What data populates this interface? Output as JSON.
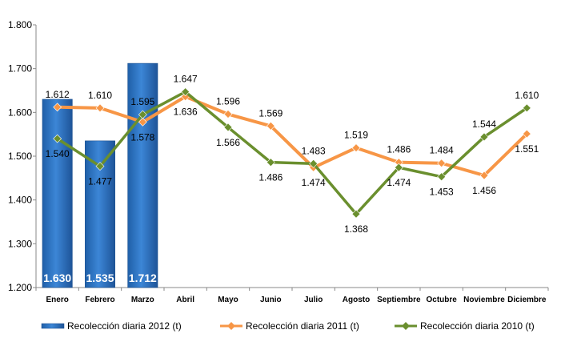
{
  "chart_data": {
    "type": "bar+line",
    "categories": [
      "Enero",
      "Febrero",
      "Marzo",
      "Abril",
      "Mayo",
      "Junio",
      "Julio",
      "Agosto",
      "Septiembre",
      "Octubre",
      "Noviembre",
      "Diciembre"
    ],
    "ylim": [
      1200,
      1800
    ],
    "yticks": [
      "1.200",
      "1.300",
      "1.400",
      "1.500",
      "1.600",
      "1.700",
      "1.800"
    ],
    "grid": false,
    "legend_position": "bottom",
    "series": [
      {
        "name": "Recolección diaria  2012 (t)",
        "kind": "bar",
        "color": "#2E75C9",
        "values": [
          1630,
          1535,
          1712,
          null,
          null,
          null,
          null,
          null,
          null,
          null,
          null,
          null
        ],
        "labels": [
          "1.630",
          "1.535",
          "1.712"
        ]
      },
      {
        "name": "Recolección diaria  2011 (t)",
        "kind": "line",
        "color": "#F79646",
        "values": [
          1612,
          1610,
          1578,
          1636,
          1596,
          1569,
          1474,
          1519,
          1486,
          1484,
          1456,
          1551
        ],
        "labels": [
          "1.612",
          "1.610",
          "1.578",
          "1.636",
          "1.596",
          "1.569",
          "1.474",
          "1.519",
          "1.486",
          "1.484",
          "1.456",
          "1.551"
        ]
      },
      {
        "name": "Recolección diaria 2010 (t)",
        "kind": "line",
        "color": "#6A8F2E",
        "values": [
          1540,
          1477,
          1595,
          1647,
          1566,
          1486,
          1483,
          1368,
          1474,
          1453,
          1544,
          1610
        ],
        "labels": [
          "1.540",
          "1.477",
          "1.595",
          "1.647",
          "1.566",
          "1.486",
          "1.483",
          "1.368",
          "1.474",
          "1.453",
          "1.544",
          "1.610"
        ]
      }
    ]
  }
}
